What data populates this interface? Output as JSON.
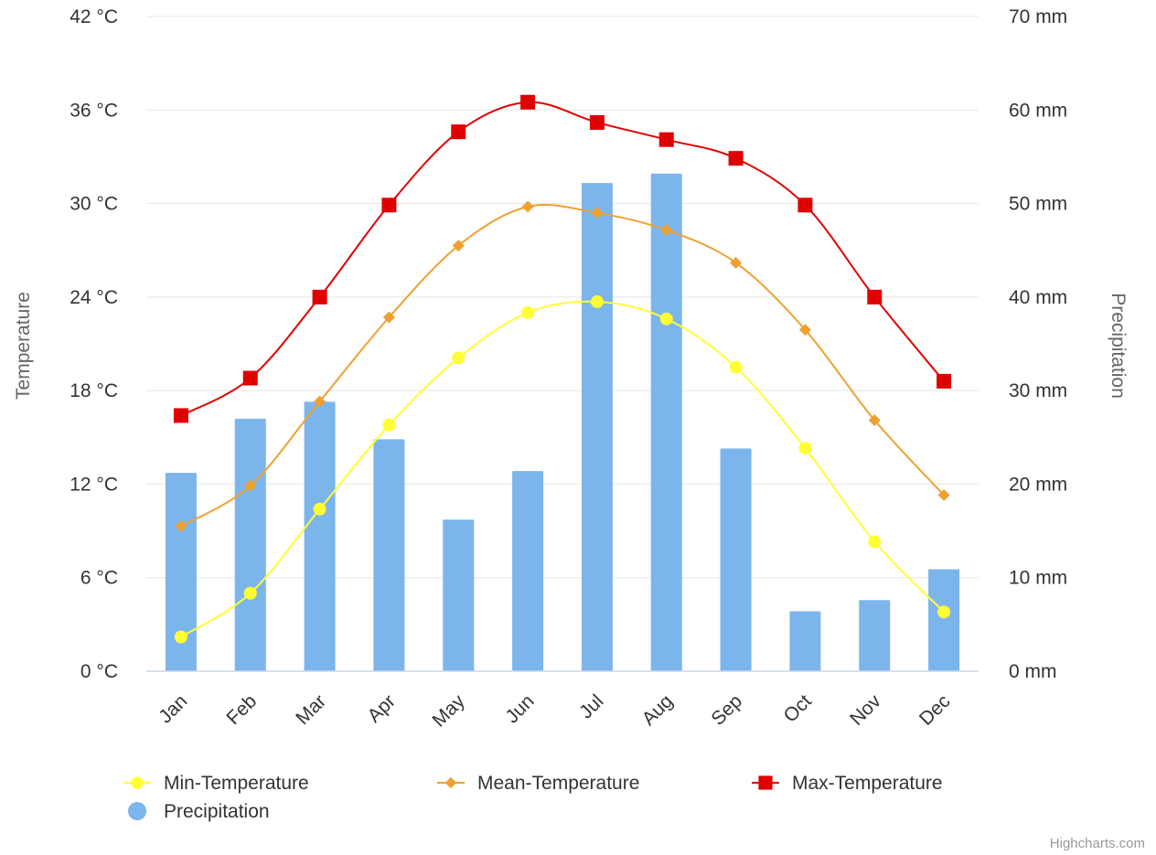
{
  "chart_data": {
    "type": "combo",
    "categories": [
      "Jan",
      "Feb",
      "Mar",
      "Apr",
      "May",
      "Jun",
      "Jul",
      "Aug",
      "Sep",
      "Oct",
      "Nov",
      "Dec"
    ],
    "y_left": {
      "title": "Temperature",
      "range": [
        0,
        42
      ],
      "ticks": [
        0,
        6,
        12,
        18,
        24,
        30,
        36,
        42
      ],
      "tick_labels": [
        "0 °C",
        "6 °C",
        "12 °C",
        "18 °C",
        "24 °C",
        "30 °C",
        "36 °C",
        "42 °C"
      ]
    },
    "y_right": {
      "title": "Precipitation",
      "range": [
        0,
        70
      ],
      "ticks": [
        0,
        10,
        20,
        30,
        40,
        50,
        60,
        70
      ],
      "tick_labels": [
        "0 mm",
        "10 mm",
        "20 mm",
        "30 mm",
        "40 mm",
        "50 mm",
        "60 mm",
        "70 mm"
      ]
    },
    "grid": true,
    "legend_position": "bottom",
    "series": [
      {
        "name": "Precipitation",
        "type": "column",
        "axis": "right",
        "color": "#7cb5ec",
        "values": [
          21.2,
          27.0,
          28.8,
          24.8,
          16.2,
          21.4,
          52.2,
          53.2,
          23.8,
          6.4,
          7.6,
          10.9
        ]
      },
      {
        "name": "Min-Temperature",
        "type": "spline",
        "axis": "left",
        "color": "#ffff33",
        "marker": "circle",
        "values": [
          2.2,
          5.0,
          10.4,
          15.8,
          20.1,
          23.0,
          23.7,
          22.6,
          19.5,
          14.3,
          8.3,
          3.8
        ]
      },
      {
        "name": "Mean-Temperature",
        "type": "spline",
        "axis": "left",
        "color": "#f0a030",
        "marker": "diamond",
        "values": [
          9.3,
          11.9,
          17.3,
          22.7,
          27.3,
          29.8,
          29.4,
          28.3,
          26.2,
          21.9,
          16.1,
          11.3
        ]
      },
      {
        "name": "Max-Temperature",
        "type": "spline",
        "axis": "left",
        "color": "#e00000",
        "marker": "square",
        "values": [
          16.4,
          18.8,
          24.0,
          29.9,
          34.6,
          36.5,
          35.2,
          34.1,
          32.9,
          29.9,
          24.0,
          18.6
        ]
      }
    ],
    "legend_order": [
      "Min-Temperature",
      "Mean-Temperature",
      "Max-Temperature",
      "Precipitation"
    ],
    "credit": "Highcharts.com"
  }
}
